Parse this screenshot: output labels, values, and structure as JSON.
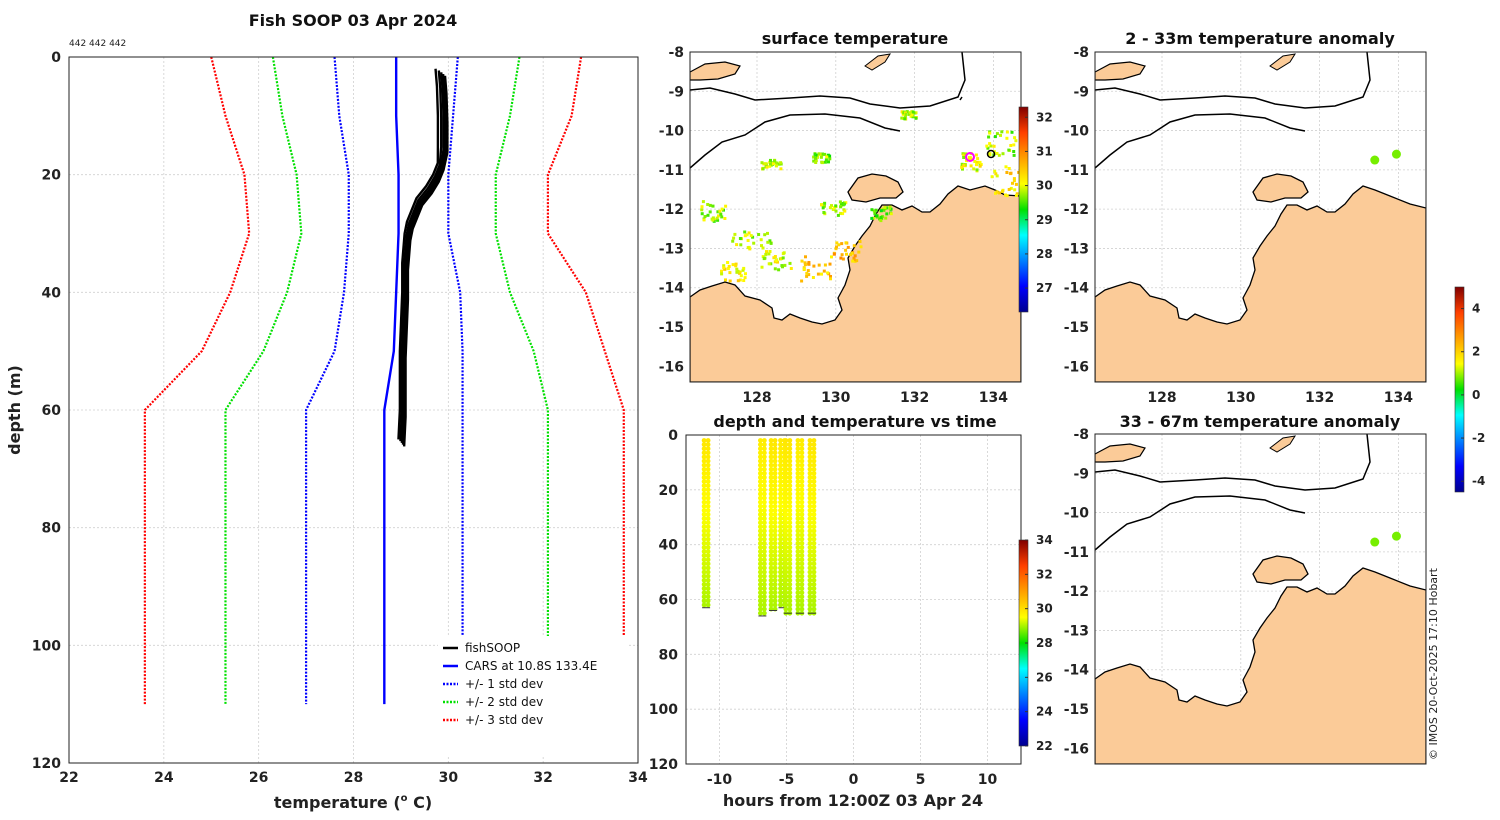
{
  "chart_data": [
    {
      "type": "line",
      "title": "Fish SOOP 03 Apr 2024",
      "id_text": "442 442 442",
      "xlabel": "temperature (",
      "xlabel_sup": "o",
      "xlabel_unit": " C)",
      "ylabel": "depth (m)",
      "xlim": [
        22,
        34
      ],
      "ylim": [
        120,
        0
      ],
      "xticks": [
        22,
        24,
        26,
        28,
        30,
        32,
        34
      ],
      "yticks": [
        0,
        20,
        40,
        60,
        80,
        100,
        120
      ],
      "series": [
        {
          "name": "fishSOOP",
          "color": "#000000",
          "style": "solid",
          "depth": [
            2,
            5,
            10,
            15,
            18,
            20,
            22,
            24,
            26,
            28,
            30,
            35,
            40,
            50,
            60,
            65
          ],
          "temp": [
            29.85,
            29.88,
            29.9,
            29.9,
            29.85,
            29.75,
            29.6,
            29.4,
            29.3,
            29.2,
            29.15,
            29.1,
            29.1,
            29.05,
            29.05,
            29.02
          ]
        },
        {
          "name": "CARS at 10.8S 133.4E",
          "color": "#0000ff",
          "style": "solid",
          "depth": [
            0,
            10,
            20,
            30,
            40,
            50,
            60,
            110
          ],
          "temp": [
            28.9,
            28.9,
            28.95,
            28.95,
            28.9,
            28.85,
            28.65,
            28.65
          ]
        },
        {
          "name": "+/- 1 std dev",
          "color": "#0000ff",
          "style": "dotted",
          "depth": [
            0,
            10,
            20,
            30,
            40,
            50,
            60,
            110
          ],
          "low": [
            27.6,
            27.7,
            27.9,
            27.9,
            27.8,
            27.6,
            27.0,
            27.0
          ],
          "high": [
            30.2,
            30.1,
            30.0,
            30.0,
            30.25,
            30.3,
            30.3,
            30.3
          ]
        },
        {
          "name": "+/- 2 std dev",
          "color": "#00e000",
          "style": "dotted",
          "depth": [
            0,
            10,
            20,
            30,
            40,
            50,
            60,
            110
          ],
          "low": [
            26.3,
            26.5,
            26.8,
            26.9,
            26.6,
            26.1,
            25.3,
            25.3
          ],
          "high": [
            31.5,
            31.3,
            31.0,
            31.0,
            31.3,
            31.8,
            32.1,
            32.1
          ]
        },
        {
          "name": "+/- 3 std dev",
          "color": "#ff0000",
          "style": "dotted",
          "depth": [
            0,
            10,
            20,
            30,
            40,
            50,
            60,
            110
          ],
          "low": [
            25.0,
            25.3,
            25.7,
            25.8,
            25.4,
            24.8,
            23.6,
            23.6
          ],
          "high": [
            32.8,
            32.6,
            32.1,
            32.1,
            32.9,
            33.3,
            33.7,
            33.7
          ]
        }
      ]
    },
    {
      "type": "heatmap",
      "title": "surface temperature",
      "x": [
        126.3,
        134.7
      ],
      "y": [
        -16.4,
        -8
      ],
      "xticks": [
        128,
        130,
        132,
        134
      ],
      "yticks": [
        -8,
        -9,
        -10,
        -11,
        -12,
        -13,
        -14,
        -15,
        -16
      ],
      "colorbar": {
        "ticks": [
          27,
          28,
          29,
          30,
          31,
          32
        ],
        "range": [
          26.3,
          32.3
        ]
      },
      "points": [
        {
          "lon": 133.4,
          "lat": -10.7,
          "value": 30.2
        },
        {
          "lon": 133.9,
          "lat": -10.6,
          "value": 30.0
        }
      ]
    },
    {
      "type": "scatter",
      "title": "depth and temperature vs time",
      "xlabel": "hours from 12:00Z 03 Apr 24",
      "ylabel": "",
      "xlim": [
        -12.5,
        12.5
      ],
      "ylim": [
        120,
        0
      ],
      "xticks": [
        -10,
        -5,
        0,
        5,
        10
      ],
      "yticks": [
        0,
        20,
        40,
        60,
        80,
        100,
        120
      ],
      "colorbar": {
        "ticks": [
          22,
          24,
          26,
          28,
          30,
          32,
          34
        ],
        "range": [
          22,
          34
        ]
      },
      "casts": [
        {
          "t": -11.0,
          "max_depth": 63,
          "surface_temp": 29.9,
          "bottom_temp": 29.0
        },
        {
          "t": -6.8,
          "max_depth": 66,
          "surface_temp": 29.8,
          "bottom_temp": 29.0
        },
        {
          "t": -6.0,
          "max_depth": 64,
          "surface_temp": 29.9,
          "bottom_temp": 29.0
        },
        {
          "t": -5.3,
          "max_depth": 63,
          "surface_temp": 29.85,
          "bottom_temp": 29.0
        },
        {
          "t": -4.9,
          "max_depth": 65,
          "surface_temp": 29.9,
          "bottom_temp": 29.0
        },
        {
          "t": -4.0,
          "max_depth": 65,
          "surface_temp": 29.8,
          "bottom_temp": 29.0
        },
        {
          "t": -3.1,
          "max_depth": 65,
          "surface_temp": 29.9,
          "bottom_temp": 29.0
        }
      ]
    },
    {
      "type": "scatter",
      "title": "2 - 33m temperature anomaly",
      "x": [
        126.3,
        134.7
      ],
      "y": [
        -16.4,
        -8
      ],
      "xticks": [
        128,
        130,
        132,
        134
      ],
      "yticks": [
        -8,
        -9,
        -10,
        -11,
        -12,
        -13,
        -14,
        -15,
        -16
      ],
      "points": [
        {
          "lon": 133.4,
          "lat": -10.75,
          "value": 0.8
        },
        {
          "lon": 133.95,
          "lat": -10.6,
          "value": 0.8
        }
      ]
    },
    {
      "type": "scatter",
      "title": "33 - 67m temperature anomaly",
      "x": [
        126.3,
        134.7
      ],
      "y": [
        -16.4,
        -8
      ],
      "yticks": [
        -8,
        -9,
        -10,
        -11,
        -12,
        -13,
        -14,
        -15,
        -16
      ],
      "points": [
        {
          "lon": 133.4,
          "lat": -10.75,
          "value": 0.8
        },
        {
          "lon": 133.95,
          "lat": -10.6,
          "value": 0.8
        }
      ],
      "colorbar": {
        "ticks": [
          -4,
          -2,
          0,
          2,
          4
        ],
        "range": [
          -4.5,
          5
        ]
      }
    }
  ],
  "credit": "© IMOS 20-Oct-2025 17:10 Hobart",
  "colors": {
    "land": "#fbcb98",
    "coast": "#000000",
    "mld_red": "#ff0000"
  }
}
